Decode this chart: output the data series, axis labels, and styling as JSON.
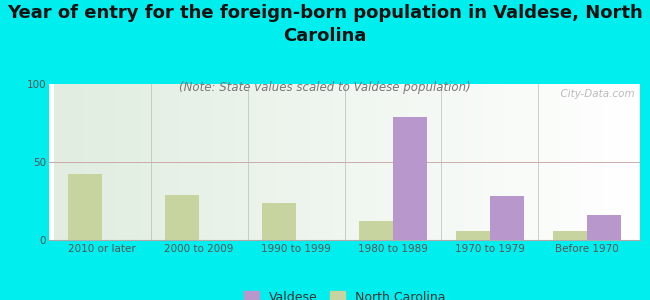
{
  "title": "Year of entry for the foreign-born population in Valdese, North\nCarolina",
  "subtitle": "(Note: State values scaled to Valdese population)",
  "categories": [
    "2010 or later",
    "2000 to 2009",
    "1990 to 1999",
    "1980 to 1989",
    "1970 to 1979",
    "Before 1970"
  ],
  "valdese_values": [
    0,
    0,
    0,
    79,
    28,
    16
  ],
  "nc_values": [
    42,
    29,
    24,
    12,
    6,
    6
  ],
  "valdese_color": "#b898cc",
  "nc_color": "#c8d4a0",
  "background_color": "#00eeee",
  "ylim": [
    0,
    100
  ],
  "yticks": [
    0,
    50,
    100
  ],
  "bar_width": 0.35,
  "title_fontsize": 13,
  "subtitle_fontsize": 8.5,
  "tick_fontsize": 7.5,
  "legend_fontsize": 9,
  "watermark": "  City-Data.com"
}
